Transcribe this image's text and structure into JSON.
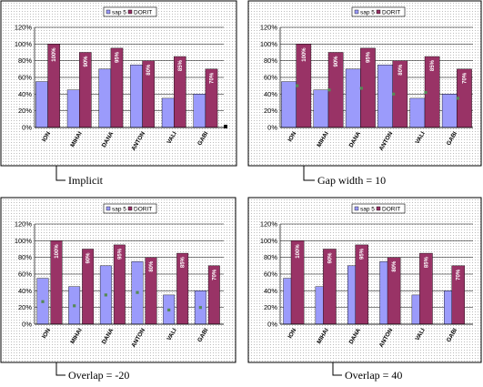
{
  "colors": {
    "sap5": "#9b9bfb",
    "dorit": "#993366",
    "marker": "#558a55"
  },
  "legend": [
    "sap 5",
    "DORIT"
  ],
  "chart_data": [
    {
      "type": "bar",
      "caption": "Implicit",
      "categories": [
        "ION",
        "MIHAI",
        "DANA",
        "ANTON",
        "VALI",
        "GABI"
      ],
      "yticks": [
        "0%",
        "20%",
        "40%",
        "60%",
        "80%",
        "100%",
        "120%"
      ],
      "ylim": [
        0,
        1.2
      ],
      "series": [
        {
          "name": "sap 5",
          "values": [
            0.55,
            0.45,
            0.7,
            0.75,
            0.35,
            0.4
          ]
        },
        {
          "name": "DORIT",
          "values": [
            1.0,
            0.9,
            0.95,
            0.8,
            0.85,
            0.7
          ]
        }
      ],
      "data_labels": [
        "100%",
        "90%",
        "95%",
        "80%",
        "85%",
        "70%"
      ],
      "markers": []
    },
    {
      "type": "bar",
      "caption": "Gap width = 10",
      "categories": [
        "ION",
        "MIHAI",
        "DANA",
        "ANTON",
        "VALI",
        "GABI"
      ],
      "yticks": [
        "0%",
        "20%",
        "40%",
        "60%",
        "80%",
        "100%",
        "120%"
      ],
      "ylim": [
        0,
        1.2
      ],
      "series": [
        {
          "name": "sap 5",
          "values": [
            0.55,
            0.45,
            0.7,
            0.75,
            0.35,
            0.4
          ]
        },
        {
          "name": "DORIT",
          "values": [
            1.0,
            0.9,
            0.95,
            0.8,
            0.85,
            0.7
          ]
        }
      ],
      "data_labels": [
        "100%",
        "90%",
        "95%",
        "80%",
        "85%",
        "70%"
      ],
      "markers": [
        0.5,
        0.45,
        0.47,
        0.4,
        0.42,
        0.35
      ]
    },
    {
      "type": "bar",
      "caption": "Overlap = -20",
      "categories": [
        "ION",
        "MIHAI",
        "DANA",
        "ANTON",
        "VALI",
        "GABI"
      ],
      "yticks": [
        "0%",
        "20%",
        "40%",
        "60%",
        "80%",
        "100%",
        "120%"
      ],
      "ylim": [
        0,
        1.2
      ],
      "series": [
        {
          "name": "sap 5",
          "values": [
            0.55,
            0.45,
            0.7,
            0.75,
            0.35,
            0.4
          ]
        },
        {
          "name": "DORIT",
          "values": [
            1.0,
            0.9,
            0.95,
            0.8,
            0.85,
            0.7
          ]
        }
      ],
      "data_labels": [
        "100%",
        "90%",
        "95%",
        "80%",
        "85%",
        "70%"
      ],
      "markers": [
        0.27,
        0.22,
        0.35,
        0.38,
        0.17,
        0.2
      ]
    },
    {
      "type": "bar",
      "caption": "Overlap = 40",
      "categories": [
        "ION",
        "MIHAI",
        "DANA",
        "ANTON",
        "VALI",
        "GABI"
      ],
      "yticks": [
        "0%",
        "20%",
        "40%",
        "60%",
        "80%",
        "100%",
        "120%"
      ],
      "ylim": [
        0,
        1.2
      ],
      "series": [
        {
          "name": "sap 5",
          "values": [
            0.55,
            0.45,
            0.7,
            0.75,
            0.35,
            0.4
          ]
        },
        {
          "name": "DORIT",
          "values": [
            1.0,
            0.9,
            0.95,
            0.8,
            0.85,
            0.7
          ]
        }
      ],
      "data_labels": [
        "100%",
        "90%",
        "95%",
        "80%",
        "85%",
        "70%"
      ],
      "markers": []
    }
  ]
}
